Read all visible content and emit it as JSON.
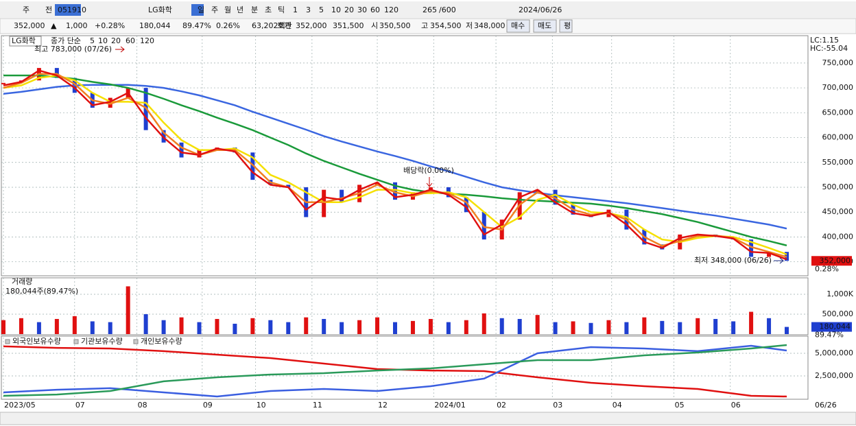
{
  "toolbar": {
    "row1": [
      "주",
      "전",
      "051910",
      "LG화학",
      "일",
      "주",
      "월",
      "년",
      "분",
      "초",
      "틱",
      "1",
      "3",
      "5",
      "10",
      "20",
      "30",
      "60",
      "120",
      "265",
      "/600",
      "2024/06/26"
    ],
    "row2": [
      "352,000",
      "▲",
      "1,000",
      "+0.28%",
      "180,044",
      "89.47%",
      "0.26%",
      "63,202백만",
      "호가",
      "352,000",
      "351,500",
      "시",
      "350,500",
      "고",
      "354,500",
      "저",
      "348,000",
      "매수",
      "매도",
      "평"
    ]
  },
  "chart_data": [
    {
      "type": "stock",
      "title": "LG화학",
      "subtitle": "종가 단순",
      "x": [
        0,
        6,
        12,
        18,
        24,
        30,
        36,
        42,
        48,
        54,
        60,
        66,
        72,
        78,
        84,
        90,
        96,
        102,
        108,
        114,
        120,
        126,
        132,
        138,
        144,
        150,
        156,
        162,
        168,
        174,
        180,
        186,
        192,
        198,
        204,
        210,
        216,
        222,
        228,
        234,
        240,
        246,
        252,
        258,
        264
      ],
      "close": [
        710000,
        715000,
        740000,
        720000,
        690000,
        660000,
        680000,
        700000,
        615000,
        590000,
        560000,
        575000,
        580000,
        570000,
        515000,
        505000,
        500000,
        440000,
        495000,
        470000,
        505000,
        510000,
        475000,
        490000,
        500000,
        480000,
        450000,
        395000,
        435000,
        490000,
        495000,
        465000,
        445000,
        440000,
        455000,
        415000,
        385000,
        375000,
        405000,
        405000,
        400000,
        395000,
        360000,
        370000,
        352000
      ],
      "up_color": "#e01010",
      "down_color": "#1f3fd0",
      "series": [
        {
          "name": "5",
          "color": "#e01010",
          "values": [
            705000,
            712000,
            735000,
            725000,
            700000,
            665000,
            672000,
            690000,
            640000,
            600000,
            570000,
            565000,
            578000,
            572000,
            530000,
            505000,
            500000,
            455000,
            480000,
            475000,
            495000,
            510000,
            480000,
            485000,
            495000,
            485000,
            460000,
            405000,
            425000,
            480000,
            495000,
            470000,
            448000,
            442000,
            450000,
            425000,
            390000,
            378000,
            398000,
            405000,
            402000,
            397000,
            370000,
            368000,
            355000
          ]
        },
        {
          "name": "10",
          "color": "#f08020",
          "values": [
            700000,
            710000,
            728000,
            728000,
            708000,
            675000,
            668000,
            680000,
            660000,
            610000,
            580000,
            565000,
            575000,
            575000,
            545000,
            510000,
            500000,
            470000,
            470000,
            478000,
            488000,
            505000,
            490000,
            482000,
            492000,
            488000,
            470000,
            420000,
            415000,
            465000,
            490000,
            478000,
            455000,
            445000,
            448000,
            435000,
            400000,
            382000,
            392000,
            402000,
            403000,
            398000,
            380000,
            370000,
            360000
          ]
        },
        {
          "name": "20",
          "color": "#f5e000",
          "values": [
            700000,
            705000,
            720000,
            725000,
            715000,
            690000,
            672000,
            672000,
            670000,
            630000,
            595000,
            575000,
            575000,
            578000,
            560000,
            525000,
            510000,
            490000,
            470000,
            470000,
            480000,
            495000,
            495000,
            488000,
            488000,
            490000,
            480000,
            450000,
            420000,
            440000,
            475000,
            485000,
            465000,
            450000,
            448000,
            440000,
            415000,
            395000,
            390000,
            398000,
            402000,
            400000,
            390000,
            378000,
            365000
          ]
        },
        {
          "name": "60",
          "color": "#1a9a3a",
          "values": [
            725000,
            725000,
            725000,
            722000,
            718000,
            712000,
            707000,
            700000,
            690000,
            678000,
            665000,
            653000,
            640000,
            628000,
            615000,
            600000,
            585000,
            568000,
            553000,
            540000,
            527000,
            515000,
            503000,
            495000,
            490000,
            487000,
            485000,
            482000,
            478000,
            475000,
            473000,
            471000,
            469000,
            467000,
            463000,
            458000,
            452000,
            446000,
            438000,
            430000,
            420000,
            410000,
            400000,
            392000,
            383000
          ]
        },
        {
          "name": "120",
          "color": "#3a66e0",
          "values": [
            688000,
            692000,
            697000,
            702000,
            705000,
            706000,
            706000,
            706000,
            704000,
            700000,
            693000,
            685000,
            675000,
            665000,
            652000,
            640000,
            628000,
            616000,
            603000,
            592000,
            582000,
            572000,
            563000,
            553000,
            542000,
            532000,
            521000,
            510000,
            500000,
            494000,
            489000,
            484000,
            480000,
            476000,
            472000,
            468000,
            463000,
            458000,
            453000,
            448000,
            443000,
            437000,
            431000,
            425000,
            417000
          ]
        }
      ],
      "xlim": [
        0,
        264
      ],
      "xticks": [
        {
          "value": 0,
          "label": "2023/05"
        },
        {
          "value": 24,
          "label": "07"
        },
        {
          "value": 45,
          "label": "08"
        },
        {
          "value": 67,
          "label": "09"
        },
        {
          "value": 85,
          "label": "10"
        },
        {
          "value": 104,
          "label": "11"
        },
        {
          "value": 126,
          "label": "12"
        },
        {
          "value": 145,
          "label": "2024/01"
        },
        {
          "value": 166,
          "label": "02"
        },
        {
          "value": 185,
          "label": "03"
        },
        {
          "value": 205,
          "label": "04"
        },
        {
          "value": 226,
          "label": "05"
        },
        {
          "value": 245,
          "label": "06"
        }
      ],
      "cursor_date": "06/26",
      "ylim": [
        322000,
        805000
      ],
      "yticks": [
        {
          "value": 350000,
          "label": "350,000"
        },
        {
          "value": 400000,
          "label": "400,000"
        },
        {
          "value": 450000,
          "label": "450,000"
        },
        {
          "value": 500000,
          "label": "500,000"
        },
        {
          "value": 550000,
          "label": "550,000"
        },
        {
          "value": 600000,
          "label": "600,000"
        },
        {
          "value": 650000,
          "label": "650,000"
        },
        {
          "value": 700000,
          "label": "700,000"
        },
        {
          "value": 750000,
          "label": "750,000"
        }
      ],
      "grid": true,
      "annotations": [
        "최고 783,000 (07/26)",
        "최저 348,000 (06/26)",
        "배당락(0.00%)"
      ],
      "lc": "LC:1.15",
      "hc": "HC:-55.04",
      "last_label": "352,000",
      "last_change": "0.28%"
    },
    {
      "type": "bar",
      "title": "거래량",
      "subtitle": "180,044주(89.47%)",
      "x": [
        0,
        6,
        12,
        18,
        24,
        30,
        36,
        42,
        48,
        54,
        60,
        66,
        72,
        78,
        84,
        90,
        96,
        102,
        108,
        114,
        120,
        126,
        132,
        138,
        144,
        150,
        156,
        162,
        168,
        174,
        180,
        186,
        192,
        198,
        204,
        210,
        216,
        222,
        228,
        234,
        240,
        246,
        252,
        258,
        264
      ],
      "values": [
        350000,
        400000,
        300000,
        380000,
        450000,
        320000,
        300000,
        1200000,
        500000,
        350000,
        420000,
        300000,
        380000,
        260000,
        400000,
        350000,
        300000,
        420000,
        380000,
        300000,
        350000,
        420000,
        300000,
        330000,
        380000,
        300000,
        350000,
        520000,
        400000,
        380000,
        480000,
        300000,
        320000,
        280000,
        350000,
        300000,
        420000,
        330000,
        300000,
        400000,
        380000,
        320000,
        560000,
        400000,
        180044
      ],
      "up_color": "#e01010",
      "down_color": "#1f3fd0",
      "xlim": [
        0,
        264
      ],
      "ylim": [
        0,
        1414000
      ],
      "yticks": [
        {
          "value": 500000,
          "label": "500,000"
        },
        {
          "value": 1000000,
          "label": "1,000K"
        }
      ],
      "grid": true,
      "last_label": "180,044",
      "last_change": "89.47%"
    },
    {
      "type": "line",
      "x": [
        0,
        18,
        36,
        54,
        72,
        90,
        108,
        126,
        144,
        162,
        180,
        198,
        216,
        234,
        252,
        264
      ],
      "series": [
        {
          "name": "외국인보유수량",
          "color": "#e01010",
          "values": [
            5760000,
            5600000,
            5530000,
            5230000,
            4850000,
            4470000,
            3860000,
            3260000,
            3100000,
            3030000,
            2350000,
            1740000,
            1360000,
            1060000,
            300000,
            230000
          ]
        },
        {
          "name": "기관보유수량",
          "color": "#3a5ee0",
          "values": [
            680000,
            980000,
            1140000,
            680000,
            230000,
            830000,
            1060000,
            830000,
            1360000,
            2200000,
            5000000,
            5680000,
            5530000,
            5230000,
            5830000,
            5300000
          ]
        },
        {
          "name": "개인보유수량",
          "color": "#2a9a5a",
          "values": [
            300000,
            450000,
            830000,
            1900000,
            2350000,
            2650000,
            2800000,
            3100000,
            3330000,
            3790000,
            4240000,
            4240000,
            4770000,
            5080000,
            5530000,
            5910000
          ]
        }
      ],
      "xlim": [
        0,
        264
      ],
      "ylim": [
        0,
        6740000
      ],
      "yticks": [
        {
          "value": 2500000,
          "label": "2,500,000"
        },
        {
          "value": 5000000,
          "label": "5,000,000"
        }
      ],
      "grid": true
    }
  ]
}
